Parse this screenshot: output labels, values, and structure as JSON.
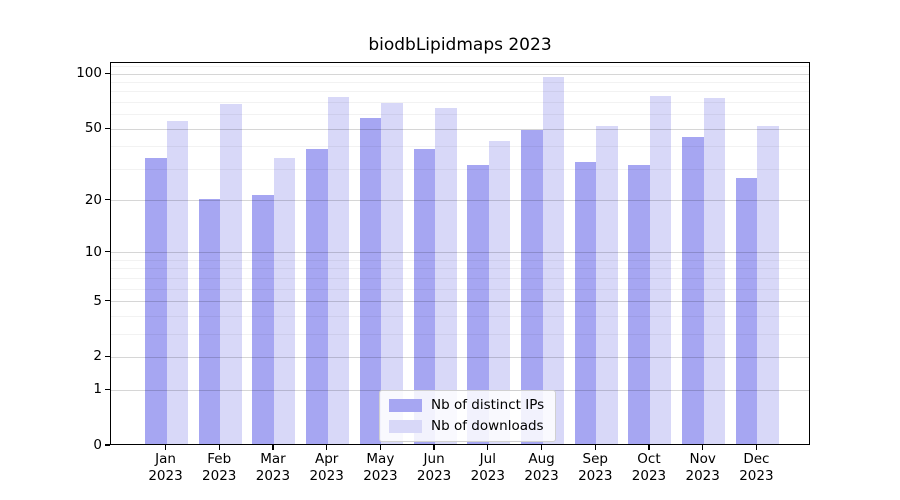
{
  "title": "biodbLipidmaps 2023",
  "chart_data": {
    "type": "bar",
    "title": "biodbLipidmaps 2023",
    "categories": [
      {
        "month": "Jan",
        "year": "2023"
      },
      {
        "month": "Feb",
        "year": "2023"
      },
      {
        "month": "Mar",
        "year": "2023"
      },
      {
        "month": "Apr",
        "year": "2023"
      },
      {
        "month": "May",
        "year": "2023"
      },
      {
        "month": "Jun",
        "year": "2023"
      },
      {
        "month": "Jul",
        "year": "2023"
      },
      {
        "month": "Aug",
        "year": "2023"
      },
      {
        "month": "Sep",
        "year": "2023"
      },
      {
        "month": "Oct",
        "year": "2023"
      },
      {
        "month": "Nov",
        "year": "2023"
      },
      {
        "month": "Dec",
        "year": "2023"
      }
    ],
    "series": [
      {
        "name": "Nb of distinct IPs",
        "color": "#a6a6f2",
        "values": [
          34,
          20,
          21,
          38,
          56,
          38,
          31,
          48,
          32,
          31,
          44,
          26
        ]
      },
      {
        "name": "Nb of downloads",
        "color": "#d8d8f8",
        "values": [
          54,
          67,
          34,
          73,
          68,
          64,
          42,
          94,
          51,
          74,
          72,
          51
        ]
      }
    ],
    "xlabel": "",
    "ylabel": "",
    "yscale": "log1p",
    "yticks": [
      100,
      50,
      20,
      10,
      5,
      2,
      1,
      0
    ],
    "yminor": [
      110,
      90,
      80,
      70,
      60,
      40,
      30,
      9,
      8,
      7,
      6,
      4,
      3
    ],
    "ylim": [
      0,
      115
    ],
    "grid": true,
    "legend_position": "bottom-center"
  }
}
